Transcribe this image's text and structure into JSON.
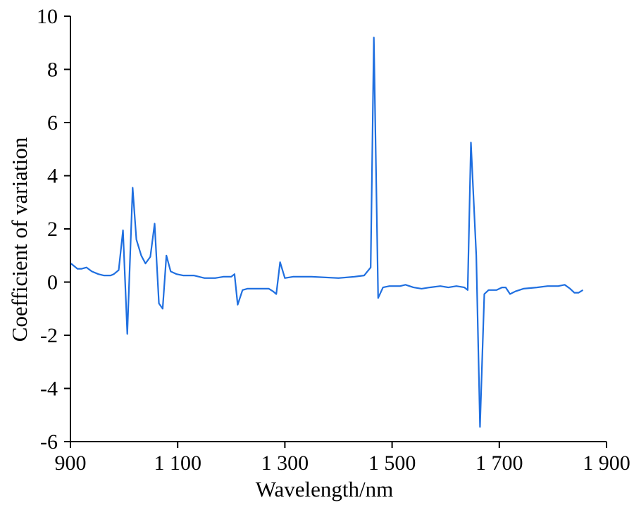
{
  "chart_data": {
    "type": "line",
    "title": "",
    "xlabel": "Wavelength/nm",
    "ylabel": "Coefficient of variation",
    "xlim": [
      900,
      1900
    ],
    "ylim": [
      -6,
      10
    ],
    "x_ticks": [
      900,
      1100,
      1300,
      1500,
      1700,
      1900
    ],
    "x_tick_labels": [
      "900",
      "1 100",
      "1 300",
      "1 500",
      "1 700",
      "1 900"
    ],
    "y_ticks": [
      -6,
      -4,
      -2,
      0,
      2,
      4,
      6,
      8,
      10
    ],
    "y_tick_labels": [
      "-6",
      "-4",
      "-2",
      "0",
      "2",
      "4",
      "6",
      "8",
      "10"
    ],
    "grid": false,
    "legend": "none",
    "series": [
      {
        "color": "#1f6fe0",
        "points": [
          [
            901,
            0.7
          ],
          [
            913,
            0.5
          ],
          [
            921,
            0.5
          ],
          [
            930,
            0.55
          ],
          [
            940,
            0.4
          ],
          [
            952,
            0.3
          ],
          [
            962,
            0.25
          ],
          [
            975,
            0.25
          ],
          [
            981,
            0.3
          ],
          [
            990,
            0.45
          ],
          [
            998,
            1.95
          ],
          [
            1006,
            -1.95
          ],
          [
            1016,
            3.55
          ],
          [
            1023,
            1.6
          ],
          [
            1032,
            1.0
          ],
          [
            1040,
            0.7
          ],
          [
            1049,
            0.95
          ],
          [
            1057,
            2.2
          ],
          [
            1065,
            -0.8
          ],
          [
            1072,
            -1.0
          ],
          [
            1079,
            1.0
          ],
          [
            1087,
            0.4
          ],
          [
            1098,
            0.3
          ],
          [
            1110,
            0.25
          ],
          [
            1130,
            0.25
          ],
          [
            1150,
            0.15
          ],
          [
            1170,
            0.15
          ],
          [
            1185,
            0.2
          ],
          [
            1200,
            0.2
          ],
          [
            1206,
            0.3
          ],
          [
            1212,
            -0.85
          ],
          [
            1221,
            -0.3
          ],
          [
            1230,
            -0.25
          ],
          [
            1250,
            -0.25
          ],
          [
            1270,
            -0.25
          ],
          [
            1278,
            -0.35
          ],
          [
            1284,
            -0.45
          ],
          [
            1291,
            0.75
          ],
          [
            1300,
            0.15
          ],
          [
            1315,
            0.2
          ],
          [
            1350,
            0.2
          ],
          [
            1400,
            0.15
          ],
          [
            1430,
            0.2
          ],
          [
            1448,
            0.25
          ],
          [
            1460,
            0.55
          ],
          [
            1466,
            9.2
          ],
          [
            1474,
            -0.6
          ],
          [
            1483,
            -0.2
          ],
          [
            1495,
            -0.15
          ],
          [
            1515,
            -0.15
          ],
          [
            1525,
            -0.1
          ],
          [
            1540,
            -0.2
          ],
          [
            1555,
            -0.25
          ],
          [
            1570,
            -0.2
          ],
          [
            1590,
            -0.15
          ],
          [
            1605,
            -0.2
          ],
          [
            1620,
            -0.15
          ],
          [
            1635,
            -0.2
          ],
          [
            1641,
            -0.3
          ],
          [
            1647,
            5.25
          ],
          [
            1657,
            1.0
          ],
          [
            1664,
            -5.45
          ],
          [
            1672,
            -0.45
          ],
          [
            1680,
            -0.3
          ],
          [
            1695,
            -0.3
          ],
          [
            1705,
            -0.2
          ],
          [
            1712,
            -0.2
          ],
          [
            1720,
            -0.45
          ],
          [
            1730,
            -0.35
          ],
          [
            1745,
            -0.25
          ],
          [
            1770,
            -0.2
          ],
          [
            1790,
            -0.15
          ],
          [
            1810,
            -0.15
          ],
          [
            1822,
            -0.1
          ],
          [
            1832,
            -0.25
          ],
          [
            1840,
            -0.4
          ],
          [
            1848,
            -0.4
          ],
          [
            1856,
            -0.3
          ]
        ]
      }
    ]
  }
}
